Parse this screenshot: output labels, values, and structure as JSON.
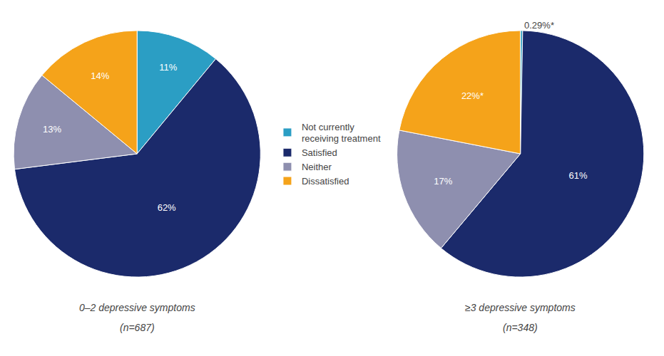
{
  "chart_data": [
    {
      "type": "pie",
      "categories": [
        "Not currently\nreceiving treatment",
        "Satisfied",
        "Neither",
        "Dissatisfied"
      ],
      "values": [
        11,
        62,
        13,
        14
      ],
      "value_labels": [
        "11%",
        "62%",
        "13%",
        "14%"
      ],
      "colors": [
        "#2B9EC4",
        "#1B2A6B",
        "#8E8FAF",
        "#F5A31A"
      ],
      "data_labels": true,
      "legend": "center",
      "subtitle": "0–2 depressive symptoms",
      "annotations": [
        "(n=687)"
      ]
    },
    {
      "type": "pie",
      "categories": [
        "Not currently\nreceiving treatment",
        "Satisfied",
        "Neither",
        "Dissatisfied"
      ],
      "values": [
        0.29,
        61,
        17,
        22
      ],
      "value_labels": [
        "0.29%*",
        "61%",
        "17%",
        "22%*"
      ],
      "colors": [
        "#2B9EC4",
        "#1B2A6B",
        "#8E8FAF",
        "#F5A31A"
      ],
      "data_labels": true,
      "legend": "center",
      "subtitle": "≥3 depressive symptoms",
      "annotations": [
        "(n=348)"
      ]
    }
  ]
}
